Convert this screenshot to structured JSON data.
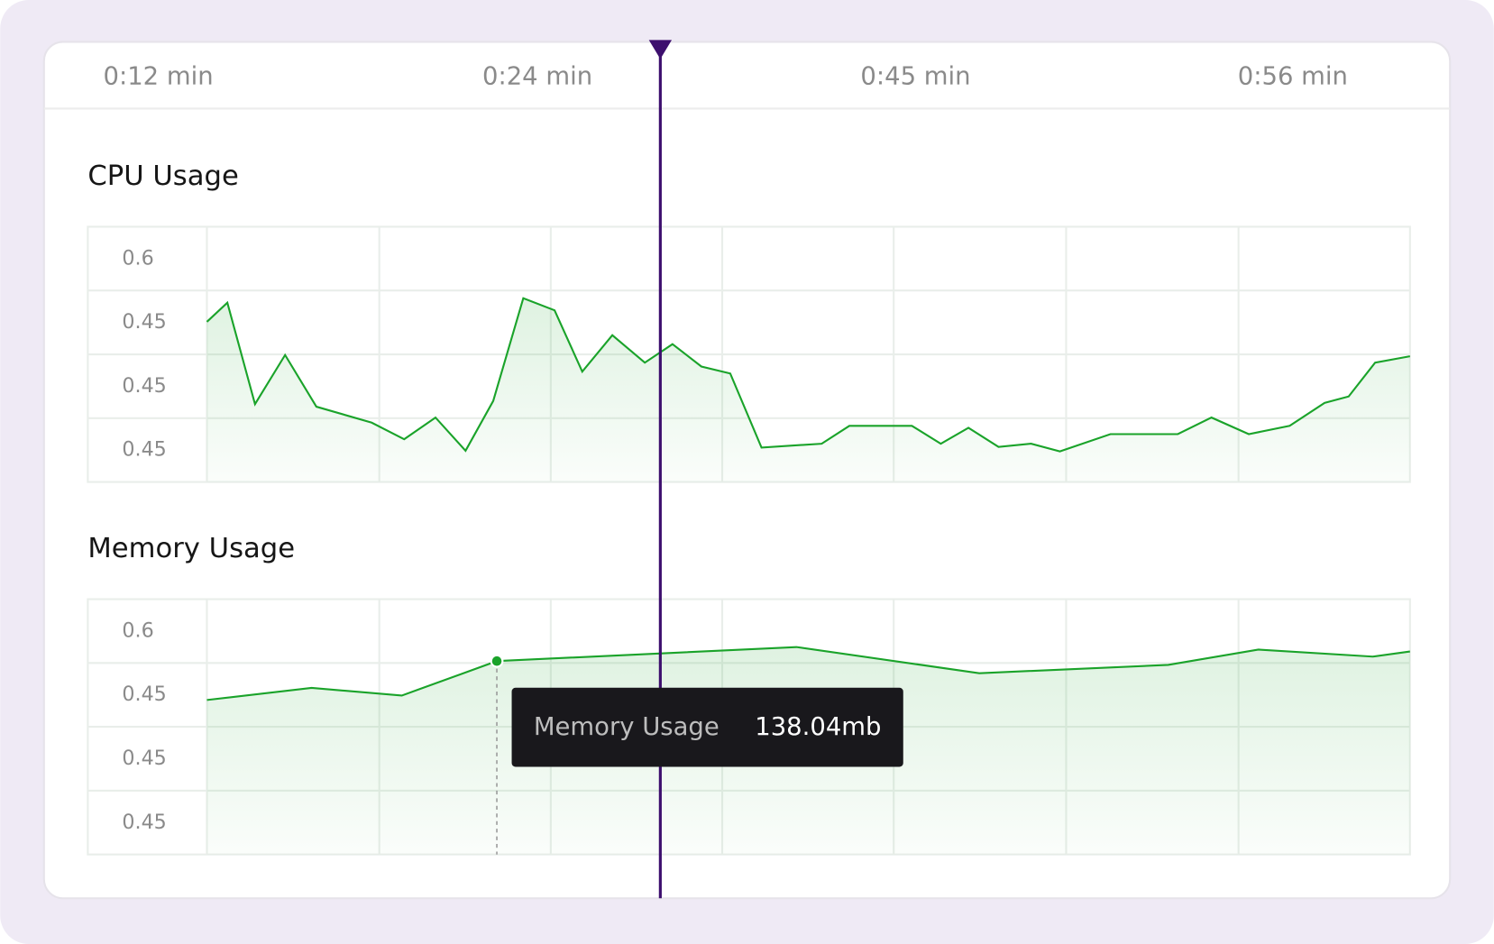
{
  "timeline": [
    "0:12 min",
    "0:24 min",
    "0:45 min",
    "0:56 min"
  ],
  "chart_data": [
    {
      "type": "line",
      "title": "CPU Usage",
      "y_labels": [
        "0.6",
        "0.45",
        "0.45",
        "0.45"
      ],
      "x": [
        0,
        1.7,
        4.0,
        6.5,
        9.1,
        13.7,
        16.4,
        19.0,
        21.5,
        23.8,
        26.3,
        28.9,
        31.2,
        33.7,
        36.4,
        38.7,
        41.1,
        43.5,
        46.1,
        51.1,
        53.4,
        58.6,
        61.0,
        63.3,
        65.8,
        68.5,
        70.9,
        75.1,
        80.7,
        83.5,
        86.6,
        90.0,
        92.9,
        94.9,
        97.1,
        100
      ],
      "series": [
        {
          "color": "#1aa32a",
          "values": [
            0.551,
            0.581,
            0.422,
            0.499,
            0.418,
            0.393,
            0.367,
            0.401,
            0.349,
            0.427,
            0.588,
            0.569,
            0.473,
            0.53,
            0.487,
            0.516,
            0.481,
            0.47,
            0.354,
            0.36,
            0.388,
            0.388,
            0.36,
            0.385,
            0.355,
            0.36,
            0.348,
            0.375,
            0.375,
            0.401,
            0.375,
            0.388,
            0.424,
            0.434,
            0.487,
            0.497
          ]
        }
      ],
      "xlim": [
        0,
        100
      ],
      "ylim": [
        0.3,
        0.7
      ]
    },
    {
      "type": "line",
      "title": "Memory Usage",
      "y_labels": [
        "0.6",
        "0.45",
        "0.45",
        "0.45"
      ],
      "x": [
        0,
        8.7,
        16.2,
        24.1,
        49.0,
        64.2,
        79.9,
        87.4,
        96.9,
        100
      ],
      "series": [
        {
          "color": "#1aa32a",
          "values": [
            0.542,
            0.561,
            0.549,
            0.603,
            0.625,
            0.584,
            0.597,
            0.621,
            0.61,
            0.618
          ]
        }
      ],
      "xlim": [
        0,
        100
      ],
      "ylim": [
        0.3,
        0.7
      ],
      "tooltip": {
        "label": "Memory Usage",
        "value": "138.04mb"
      }
    }
  ]
}
